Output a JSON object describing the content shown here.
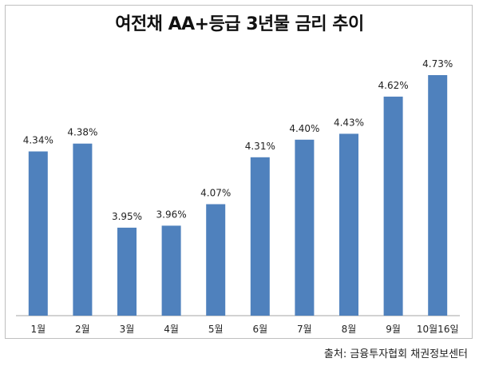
{
  "chart_data": {
    "type": "bar",
    "title": "여전채 AA+등급 3년물 금리 추이",
    "categories": [
      "1월",
      "2월",
      "3월",
      "4월",
      "5월",
      "6월",
      "7월",
      "8월",
      "9월",
      "10월16일"
    ],
    "values": [
      4.34,
      4.38,
      3.95,
      3.96,
      4.07,
      4.31,
      4.4,
      4.43,
      4.62,
      4.73
    ],
    "value_labels": [
      "4.34%",
      "4.38%",
      "3.95%",
      "3.96%",
      "4.07%",
      "4.31%",
      "4.40%",
      "4.43%",
      "4.62%",
      "4.73%"
    ],
    "ylim": [
      3.5,
      4.82
    ],
    "grid": false,
    "bar_color": "#4f81bd"
  },
  "source": "출처: 금융투자협회 채권정보센터"
}
